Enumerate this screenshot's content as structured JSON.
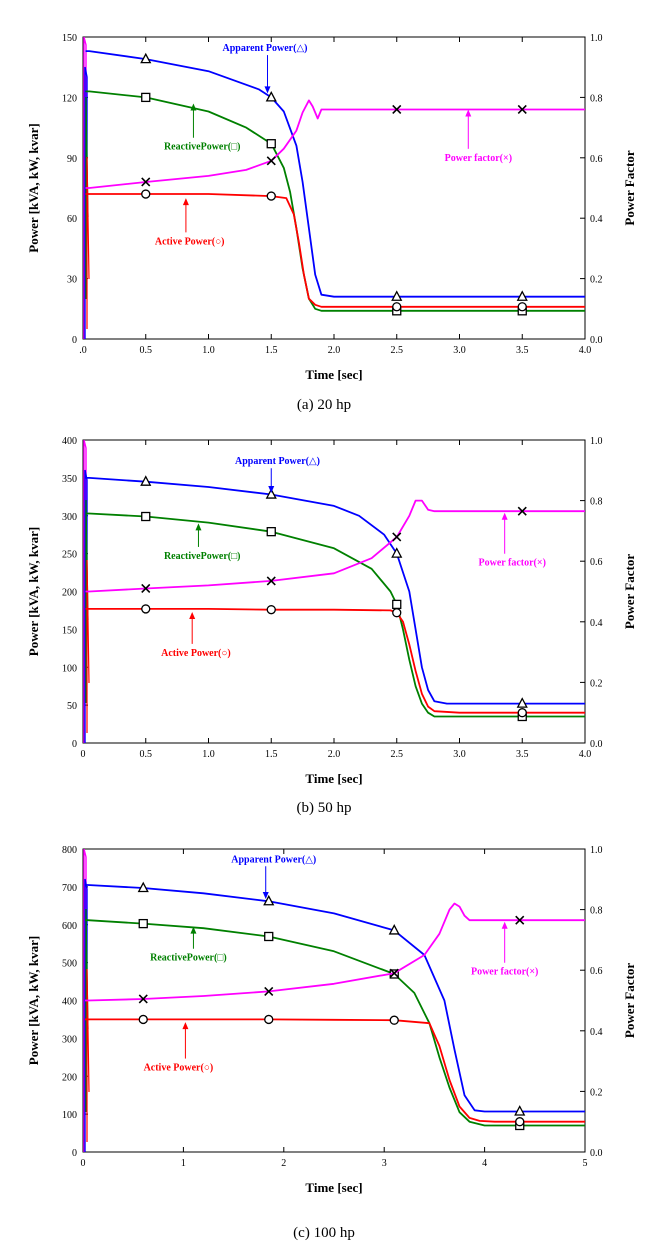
{
  "chart_data": [
    {
      "type": "line",
      "caption": "(a) 20 hp",
      "xlabel": "Time [sec]",
      "ylabel_left": "Power [kVA, kW, kvar]",
      "ylabel_right": "Power Factor",
      "x_ticks": [
        ".0",
        "0.5",
        "1.0",
        "1.5",
        "2.0",
        "2.5",
        "3.0",
        "3.5",
        "4.0"
      ],
      "xlim": [
        0,
        4.0
      ],
      "ylim_left": [
        0,
        150
      ],
      "y_ticks_left": [
        "0",
        "30",
        "60",
        "90",
        "120",
        "150"
      ],
      "ylim_right": [
        0,
        1.0
      ],
      "y_ticks_right": [
        "0.0",
        "0.2",
        "0.4",
        "0.6",
        "0.8",
        "1.0"
      ],
      "series": [
        {
          "name": "Apparent Power(△)",
          "axis": "left",
          "color": "#0000ff",
          "marker": "triangle",
          "x": [
            0.02,
            0.05,
            0.5,
            1.0,
            1.4,
            1.5,
            1.6,
            1.7,
            1.75,
            1.8,
            1.85,
            1.9,
            2.0,
            2.5,
            3.0,
            3.5,
            4.0
          ],
          "y": [
            143,
            143,
            139,
            133,
            124,
            120,
            113,
            96,
            78,
            55,
            32,
            22,
            21,
            21,
            21,
            21,
            21
          ],
          "marker_x": [
            0.5,
            1.5,
            2.5,
            3.5
          ],
          "marker_y": [
            139,
            120,
            21,
            21
          ],
          "label_pos": {
            "x": 1.45,
            "y": 143
          },
          "arrow_to": {
            "x": 1.47,
            "y": 122
          }
        },
        {
          "name": "ReactivePower(□)",
          "axis": "left",
          "color": "#008000",
          "marker": "square",
          "x": [
            0.02,
            0.05,
            0.5,
            1.0,
            1.3,
            1.5,
            1.6,
            1.65,
            1.7,
            1.75,
            1.8,
            1.85,
            1.9,
            2.0,
            2.5,
            3.0,
            3.5,
            4.0
          ],
          "y": [
            123,
            123,
            120,
            113,
            105,
            97,
            85,
            73,
            55,
            35,
            20,
            15,
            14,
            14,
            14,
            14,
            14,
            14
          ],
          "marker_x": [
            0.5,
            1.5,
            2.5,
            3.5
          ],
          "marker_y": [
            120,
            97,
            14,
            14
          ],
          "label_pos": {
            "x": 0.95,
            "y": 94
          },
          "arrow_to": {
            "x": 0.88,
            "y": 117
          }
        },
        {
          "name": "Power factor(×)",
          "axis": "right",
          "color": "#ff00ff",
          "marker": "x",
          "x": [
            0.02,
            0.05,
            0.5,
            1.0,
            1.3,
            1.5,
            1.6,
            1.7,
            1.75,
            1.8,
            1.83,
            1.87,
            1.9,
            2.0,
            2.5,
            3.0,
            3.5,
            4.0
          ],
          "y": [
            0.5,
            0.5,
            0.52,
            0.54,
            0.56,
            0.59,
            0.63,
            0.69,
            0.75,
            0.79,
            0.77,
            0.73,
            0.76,
            0.76,
            0.76,
            0.76,
            0.76,
            0.76
          ],
          "marker_x": [
            0.5,
            1.5,
            2.5,
            3.5
          ],
          "marker_y": [
            0.52,
            0.59,
            0.76,
            0.76
          ],
          "label_pos": {
            "x": 3.15,
            "y": 0.59
          },
          "arrow_to": {
            "x": 3.07,
            "y": 0.76
          }
        },
        {
          "name": "Active Power(○)",
          "axis": "left",
          "color": "#ff0000",
          "marker": "circle",
          "x": [
            0.02,
            0.05,
            0.5,
            1.0,
            1.5,
            1.62,
            1.68,
            1.72,
            1.76,
            1.8,
            1.85,
            1.9,
            2.0,
            2.5,
            3.0,
            3.5,
            4.0
          ],
          "y": [
            72,
            72,
            72,
            72,
            71,
            70,
            62,
            48,
            32,
            20,
            17,
            16,
            16,
            16,
            16,
            16,
            16
          ],
          "marker_x": [
            0.5,
            1.5,
            2.5,
            3.5
          ],
          "marker_y": [
            72,
            71,
            16,
            16
          ],
          "label_pos": {
            "x": 0.85,
            "y": 47
          },
          "arrow_to": {
            "x": 0.82,
            "y": 70
          }
        }
      ]
    },
    {
      "type": "line",
      "caption": "(b) 50 hp",
      "xlabel": "Time [sec]",
      "ylabel_left": "Power [kVA, kW, kvar]",
      "ylabel_right": "Power Factor",
      "x_ticks": [
        "0",
        "0.5",
        "1.0",
        "1.5",
        "2.0",
        "2.5",
        "3.0",
        "3.5",
        "4.0"
      ],
      "xlim": [
        0,
        4.0
      ],
      "ylim_left": [
        0,
        400
      ],
      "y_ticks_left": [
        "0",
        "50",
        "100",
        "150",
        "200",
        "250",
        "300",
        "350",
        "400"
      ],
      "ylim_right": [
        0,
        1.0
      ],
      "y_ticks_right": [
        "0.0",
        "0.2",
        "0.4",
        "0.6",
        "0.8",
        "1.0"
      ],
      "series": [
        {
          "name": "Apparent Power(△)",
          "axis": "left",
          "color": "#0000ff",
          "marker": "triangle",
          "x": [
            0.02,
            0.05,
            0.5,
            1.0,
            1.5,
            2.0,
            2.2,
            2.4,
            2.5,
            2.6,
            2.65,
            2.7,
            2.75,
            2.8,
            2.9,
            3.0,
            3.5,
            4.0
          ],
          "y": [
            350,
            350,
            345,
            338,
            328,
            313,
            300,
            275,
            250,
            200,
            150,
            100,
            70,
            55,
            52,
            52,
            52,
            52
          ],
          "marker_x": [
            0.5,
            1.5,
            2.5,
            3.5
          ],
          "marker_y": [
            345,
            328,
            250,
            52
          ],
          "label_pos": {
            "x": 1.55,
            "y": 368
          },
          "arrow_to": {
            "x": 1.5,
            "y": 330
          }
        },
        {
          "name": "ReactivePower(□)",
          "axis": "left",
          "color": "#008000",
          "marker": "square",
          "x": [
            0.02,
            0.05,
            0.5,
            1.0,
            1.5,
            2.0,
            2.3,
            2.45,
            2.5,
            2.55,
            2.6,
            2.65,
            2.7,
            2.75,
            2.8,
            3.0,
            3.5,
            4.0
          ],
          "y": [
            303,
            303,
            299,
            291,
            279,
            257,
            230,
            200,
            183,
            150,
            110,
            75,
            52,
            40,
            35,
            35,
            35,
            35
          ],
          "marker_x": [
            0.5,
            1.5,
            2.5,
            3.5
          ],
          "marker_y": [
            299,
            279,
            183,
            35
          ],
          "label_pos": {
            "x": 0.95,
            "y": 243
          },
          "arrow_to": {
            "x": 0.92,
            "y": 290
          }
        },
        {
          "name": "Power factor(×)",
          "axis": "right",
          "color": "#ff00ff",
          "marker": "x",
          "x": [
            0.02,
            0.05,
            0.5,
            1.0,
            1.5,
            2.0,
            2.3,
            2.5,
            2.6,
            2.65,
            2.7,
            2.75,
            2.8,
            2.9,
            3.0,
            3.5,
            4.0
          ],
          "y": [
            0.5,
            0.5,
            0.51,
            0.52,
            0.535,
            0.56,
            0.61,
            0.68,
            0.75,
            0.8,
            0.8,
            0.77,
            0.765,
            0.765,
            0.765,
            0.765,
            0.765
          ],
          "marker_x": [
            0.5,
            1.5,
            2.5,
            3.5
          ],
          "marker_y": [
            0.51,
            0.535,
            0.68,
            0.765
          ],
          "label_pos": {
            "x": 3.42,
            "y": 0.585
          },
          "arrow_to": {
            "x": 3.36,
            "y": 0.76
          }
        },
        {
          "name": "Active Power(○)",
          "axis": "left",
          "color": "#ff0000",
          "marker": "circle",
          "x": [
            0.02,
            0.05,
            0.5,
            1.0,
            1.5,
            2.0,
            2.45,
            2.5,
            2.55,
            2.6,
            2.65,
            2.7,
            2.75,
            2.8,
            3.0,
            3.5,
            4.0
          ],
          "y": [
            177,
            177,
            177,
            177,
            176,
            176,
            175,
            172,
            160,
            130,
            95,
            65,
            48,
            42,
            40,
            40,
            40
          ],
          "marker_x": [
            0.5,
            1.5,
            2.5,
            3.5
          ],
          "marker_y": [
            177,
            176,
            172,
            40
          ],
          "label_pos": {
            "x": 0.9,
            "y": 115
          },
          "arrow_to": {
            "x": 0.87,
            "y": 173
          }
        }
      ]
    },
    {
      "type": "line",
      "caption": "(c) 100 hp",
      "xlabel": "Time [sec]",
      "ylabel_left": "Power [kVA, kW, kvar]",
      "ylabel_right": "Power Factor",
      "x_ticks": [
        "0",
        "1",
        "2",
        "3",
        "4",
        "5"
      ],
      "xlim": [
        0,
        5
      ],
      "ylim_left": [
        0,
        800
      ],
      "y_ticks_left": [
        "0",
        "100",
        "200",
        "300",
        "400",
        "500",
        "600",
        "700",
        "800"
      ],
      "ylim_right": [
        0,
        1.0
      ],
      "y_ticks_right": [
        "0.0",
        "0.2",
        "0.4",
        "0.6",
        "0.8",
        "1.0"
      ],
      "series": [
        {
          "name": "Apparent Power(△)",
          "axis": "left",
          "color": "#0000ff",
          "marker": "triangle",
          "x": [
            0.02,
            0.05,
            0.6,
            1.2,
            1.85,
            2.5,
            3.1,
            3.4,
            3.6,
            3.7,
            3.8,
            3.9,
            4.0,
            4.35,
            5.0
          ],
          "y": [
            705,
            705,
            697,
            683,
            662,
            630,
            585,
            520,
            400,
            270,
            150,
            110,
            107,
            107,
            107
          ],
          "marker_x": [
            0.6,
            1.85,
            3.1,
            4.35
          ],
          "marker_y": [
            697,
            662,
            585,
            107
          ],
          "label_pos": {
            "x": 1.9,
            "y": 765
          },
          "arrow_to": {
            "x": 1.82,
            "y": 668
          }
        },
        {
          "name": "ReactivePower(□)",
          "axis": "left",
          "color": "#008000",
          "marker": "square",
          "x": [
            0.02,
            0.05,
            0.6,
            1.2,
            1.85,
            2.5,
            3.1,
            3.3,
            3.45,
            3.55,
            3.65,
            3.75,
            3.85,
            4.0,
            4.35,
            5.0
          ],
          "y": [
            612,
            612,
            603,
            591,
            569,
            530,
            470,
            420,
            340,
            250,
            170,
            105,
            80,
            70,
            70,
            70
          ],
          "marker_x": [
            0.6,
            1.85,
            3.1,
            4.35
          ],
          "marker_y": [
            603,
            569,
            470,
            70
          ],
          "label_pos": {
            "x": 1.05,
            "y": 505
          },
          "arrow_to": {
            "x": 1.1,
            "y": 595
          }
        },
        {
          "name": "Power factor(×)",
          "axis": "right",
          "color": "#ff00ff",
          "marker": "x",
          "x": [
            0.02,
            0.05,
            0.6,
            1.2,
            1.85,
            2.5,
            3.1,
            3.4,
            3.55,
            3.65,
            3.7,
            3.75,
            3.8,
            3.85,
            3.95,
            4.35,
            5.0
          ],
          "y": [
            0.5,
            0.5,
            0.505,
            0.515,
            0.53,
            0.555,
            0.59,
            0.65,
            0.72,
            0.8,
            0.82,
            0.81,
            0.78,
            0.765,
            0.765,
            0.765,
            0.765
          ],
          "marker_x": [
            0.6,
            1.85,
            3.1,
            4.35
          ],
          "marker_y": [
            0.505,
            0.53,
            0.59,
            0.765
          ],
          "label_pos": {
            "x": 4.2,
            "y": 0.585
          },
          "arrow_to": {
            "x": 4.2,
            "y": 0.76
          }
        },
        {
          "name": "Active Power(○)",
          "axis": "left",
          "color": "#ff0000",
          "marker": "circle",
          "x": [
            0.02,
            0.05,
            0.6,
            1.2,
            1.85,
            2.5,
            3.1,
            3.45,
            3.55,
            3.65,
            3.75,
            3.85,
            3.95,
            4.1,
            4.35,
            5.0
          ],
          "y": [
            350,
            350,
            350,
            350,
            350,
            349,
            348,
            340,
            280,
            190,
            120,
            90,
            82,
            80,
            80,
            80
          ],
          "marker_x": [
            0.6,
            1.85,
            3.1,
            4.35
          ],
          "marker_y": [
            350,
            350,
            348,
            80
          ],
          "label_pos": {
            "x": 0.95,
            "y": 215
          },
          "arrow_to": {
            "x": 1.02,
            "y": 343
          }
        }
      ]
    }
  ]
}
